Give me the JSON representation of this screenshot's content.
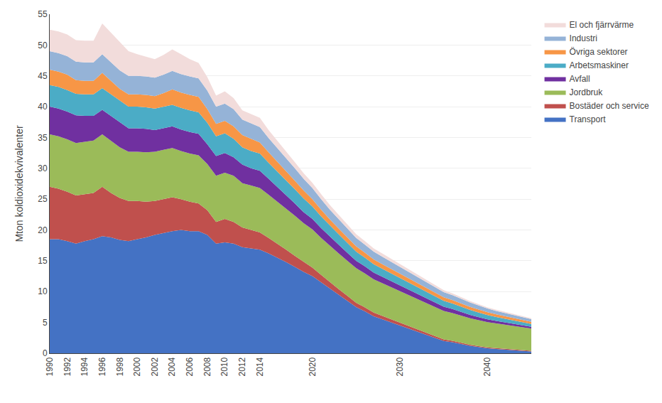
{
  "chart_data": {
    "type": "area",
    "stacked": true,
    "ylabel": "Mton koldioxidekvivalenter",
    "x": [
      1990,
      1991,
      1992,
      1993,
      1994,
      1995,
      1996,
      1997,
      1998,
      1999,
      2000,
      2001,
      2002,
      2003,
      2004,
      2005,
      2006,
      2007,
      2008,
      2009,
      2010,
      2011,
      2012,
      2013,
      2014,
      2015,
      2016,
      2017,
      2018,
      2019,
      2020,
      2021,
      2022,
      2023,
      2024,
      2025,
      2026,
      2027,
      2028,
      2029,
      2030,
      2031,
      2032,
      2033,
      2034,
      2035,
      2036,
      2037,
      2038,
      2039,
      2040,
      2041,
      2042,
      2043,
      2044,
      2045
    ],
    "xlim": [
      1990,
      2045
    ],
    "xticks": [
      1990,
      1992,
      1994,
      1996,
      1998,
      2000,
      2002,
      2004,
      2006,
      2008,
      2010,
      2012,
      2014,
      2020,
      2030,
      2040
    ],
    "ylim": [
      0,
      55
    ],
    "yticks": [
      0,
      5,
      10,
      15,
      20,
      25,
      30,
      35,
      40,
      45,
      50,
      55
    ],
    "grid": true,
    "legend": "right",
    "series": [
      {
        "name": "Transport",
        "color": "#4472C4",
        "values": [
          18.5,
          18.5,
          18.2,
          17.8,
          18.2,
          18.5,
          19.0,
          18.8,
          18.4,
          18.2,
          18.5,
          18.8,
          19.2,
          19.5,
          19.8,
          20.0,
          19.8,
          19.8,
          19.2,
          17.8,
          18.0,
          17.8,
          17.2,
          17.0,
          16.8,
          16.2,
          15.5,
          14.8,
          14.0,
          13.2,
          12.5,
          11.5,
          10.5,
          9.5,
          8.5,
          7.5,
          6.8,
          6.0,
          5.5,
          5.0,
          4.5,
          4.0,
          3.5,
          3.0,
          2.5,
          2.0,
          1.8,
          1.5,
          1.2,
          1.0,
          0.8,
          0.7,
          0.6,
          0.5,
          0.4,
          0.3
        ]
      },
      {
        "name": "Bostäder och service",
        "color": "#C0504D",
        "values": [
          8.5,
          8.2,
          8.0,
          7.8,
          7.6,
          7.5,
          8.0,
          7.2,
          6.8,
          6.5,
          6.2,
          5.8,
          5.5,
          5.5,
          5.5,
          5.0,
          4.8,
          4.5,
          4.0,
          3.5,
          3.8,
          3.5,
          3.2,
          3.0,
          2.8,
          2.5,
          2.3,
          2.0,
          1.8,
          1.6,
          1.4,
          1.2,
          1.0,
          0.9,
          0.8,
          0.7,
          0.65,
          0.6,
          0.55,
          0.5,
          0.45,
          0.4,
          0.35,
          0.3,
          0.28,
          0.25,
          0.22,
          0.2,
          0.18,
          0.16,
          0.15,
          0.14,
          0.13,
          0.12,
          0.11,
          0.1
        ]
      },
      {
        "name": "Jordbruk",
        "color": "#9BBB59",
        "values": [
          8.5,
          8.5,
          8.5,
          8.5,
          8.5,
          8.5,
          8.5,
          8.5,
          8.2,
          8.0,
          8.0,
          8.0,
          8.0,
          8.0,
          8.0,
          7.8,
          7.8,
          7.8,
          7.5,
          7.5,
          7.5,
          7.5,
          7.2,
          7.2,
          7.2,
          7.0,
          6.8,
          6.7,
          6.5,
          6.3,
          6.2,
          6.0,
          5.9,
          5.8,
          5.7,
          5.6,
          5.5,
          5.4,
          5.3,
          5.2,
          5.1,
          5.0,
          4.9,
          4.8,
          4.7,
          4.6,
          4.5,
          4.4,
          4.3,
          4.2,
          4.1,
          4.0,
          3.9,
          3.8,
          3.7,
          3.6
        ]
      },
      {
        "name": "Avfall",
        "color": "#7030A0",
        "values": [
          4.5,
          4.5,
          4.5,
          4.5,
          4.2,
          4.0,
          4.0,
          4.0,
          4.0,
          3.8,
          3.8,
          3.8,
          3.5,
          3.5,
          3.5,
          3.5,
          3.5,
          3.5,
          3.2,
          3.2,
          3.2,
          3.0,
          3.0,
          2.8,
          2.8,
          2.6,
          2.4,
          2.2,
          2.0,
          1.8,
          1.7,
          1.6,
          1.5,
          1.4,
          1.3,
          1.2,
          1.15,
          1.1,
          1.05,
          1.0,
          0.95,
          0.9,
          0.85,
          0.8,
          0.75,
          0.7,
          0.65,
          0.6,
          0.55,
          0.5,
          0.45,
          0.4,
          0.38,
          0.35,
          0.32,
          0.3
        ]
      },
      {
        "name": "Arbetsmaskiner",
        "color": "#4BACC6",
        "values": [
          3.5,
          3.5,
          3.5,
          3.5,
          3.5,
          3.5,
          3.5,
          3.5,
          3.5,
          3.5,
          3.5,
          3.5,
          3.5,
          3.5,
          3.5,
          3.5,
          3.5,
          3.5,
          3.5,
          3.2,
          3.2,
          3.0,
          2.8,
          2.8,
          2.8,
          2.6,
          2.5,
          2.4,
          2.3,
          2.2,
          2.0,
          1.9,
          1.8,
          1.7,
          1.6,
          1.5,
          1.4,
          1.35,
          1.3,
          1.25,
          1.2,
          1.15,
          1.1,
          1.05,
          1.0,
          0.95,
          0.9,
          0.85,
          0.8,
          0.75,
          0.7,
          0.65,
          0.6,
          0.55,
          0.5,
          0.45
        ]
      },
      {
        "name": "Övriga sektorer",
        "color": "#F79646",
        "values": [
          2.5,
          2.5,
          2.5,
          2.2,
          2.2,
          2.2,
          2.5,
          2.2,
          2.0,
          2.0,
          2.0,
          2.0,
          2.0,
          2.2,
          2.5,
          2.5,
          2.5,
          2.5,
          2.2,
          2.0,
          2.0,
          2.0,
          2.0,
          2.0,
          1.8,
          1.7,
          1.6,
          1.5,
          1.4,
          1.3,
          1.2,
          1.1,
          1.0,
          0.95,
          0.9,
          0.85,
          0.82,
          0.78,
          0.75,
          0.72,
          0.7,
          0.68,
          0.65,
          0.62,
          0.6,
          0.58,
          0.55,
          0.52,
          0.5,
          0.48,
          0.45,
          0.43,
          0.41,
          0.39,
          0.37,
          0.35
        ]
      },
      {
        "name": "Industri",
        "color": "#95B3D7",
        "values": [
          3.0,
          3.0,
          3.0,
          3.0,
          3.0,
          3.0,
          3.0,
          3.0,
          3.0,
          3.0,
          3.0,
          3.0,
          3.0,
          3.0,
          3.0,
          3.0,
          3.0,
          3.0,
          3.0,
          2.8,
          2.8,
          2.8,
          2.5,
          2.5,
          2.5,
          2.3,
          2.2,
          2.1,
          2.0,
          1.9,
          1.8,
          1.7,
          1.6,
          1.5,
          1.4,
          1.35,
          1.3,
          1.25,
          1.2,
          1.15,
          1.1,
          1.05,
          1.0,
          0.95,
          0.9,
          0.85,
          0.8,
          0.75,
          0.7,
          0.65,
          0.6,
          0.55,
          0.52,
          0.49,
          0.46,
          0.43
        ]
      },
      {
        "name": "El och fjärrvärme",
        "color": "#F2DCDB",
        "values": [
          3.5,
          3.5,
          3.5,
          3.5,
          3.5,
          3.5,
          5.0,
          4.8,
          4.5,
          4.0,
          3.5,
          3.2,
          3.0,
          3.2,
          3.5,
          3.2,
          2.8,
          2.5,
          2.2,
          1.8,
          2.0,
          1.8,
          1.5,
          1.5,
          1.5,
          1.3,
          1.2,
          1.1,
          1.0,
          0.9,
          0.85,
          0.8,
          0.75,
          0.7,
          0.65,
          0.6,
          0.57,
          0.54,
          0.51,
          0.48,
          0.45,
          0.42,
          0.39,
          0.36,
          0.33,
          0.3,
          0.28,
          0.26,
          0.24,
          0.22,
          0.2,
          0.18,
          0.17,
          0.16,
          0.15,
          0.14
        ]
      }
    ]
  }
}
